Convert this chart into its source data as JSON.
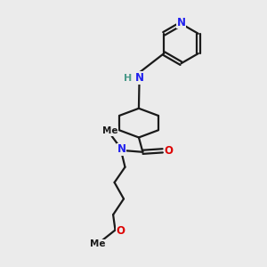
{
  "background_color": "#ebebeb",
  "bond_color": "#1a1a1a",
  "nitrogen_color": "#2020ee",
  "oxygen_color": "#dd0000",
  "nh_color": "#4a9a8a",
  "figsize": [
    3.0,
    3.0
  ],
  "dpi": 100,
  "xlim": [
    0,
    10
  ],
  "ylim": [
    0,
    10
  ]
}
